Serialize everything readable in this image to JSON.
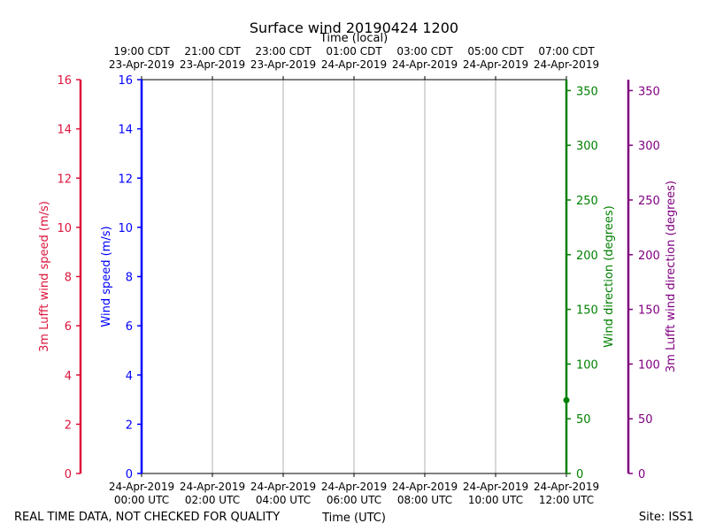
{
  "chart_data": {
    "type": "line",
    "title": "Surface wind 20190424 1200",
    "top_xlabel": "Time (local)",
    "xlabel": "Time (UTC)",
    "footer_left": "REAL TIME DATA, NOT CHECKED FOR QUALITY",
    "footer_right": "Site: ISS1",
    "x_ticks_utc": [
      [
        "24-Apr-2019",
        "00:00 UTC"
      ],
      [
        "24-Apr-2019",
        "02:00 UTC"
      ],
      [
        "24-Apr-2019",
        "04:00 UTC"
      ],
      [
        "24-Apr-2019",
        "06:00 UTC"
      ],
      [
        "24-Apr-2019",
        "08:00 UTC"
      ],
      [
        "24-Apr-2019",
        "10:00 UTC"
      ],
      [
        "24-Apr-2019",
        "12:00 UTC"
      ]
    ],
    "x_ticks_local": [
      [
        "19:00 CDT",
        "23-Apr-2019"
      ],
      [
        "21:00 CDT",
        "23-Apr-2019"
      ],
      [
        "23:00 CDT",
        "23-Apr-2019"
      ],
      [
        "01:00 CDT",
        "24-Apr-2019"
      ],
      [
        "03:00 CDT",
        "24-Apr-2019"
      ],
      [
        "05:00 CDT",
        "24-Apr-2019"
      ],
      [
        "07:00 CDT",
        "24-Apr-2019"
      ]
    ],
    "xlim_hours": [
      0,
      12
    ],
    "axes": {
      "lufft_speed": {
        "label": "3m Lufft wind speed (m/s)",
        "ylim": [
          0,
          16
        ],
        "ticks": [
          0,
          2,
          4,
          6,
          8,
          10,
          12,
          14,
          16
        ],
        "color": "#dc143c"
      },
      "speed": {
        "label": "Wind speed (m/s)",
        "ylim": [
          0,
          16
        ],
        "ticks": [
          0,
          2,
          4,
          6,
          8,
          10,
          12,
          14,
          16
        ],
        "color": "#0000ff"
      },
      "direction": {
        "label": "Wind direction (degrees)",
        "ylim": [
          0,
          360
        ],
        "ticks": [
          0,
          50,
          100,
          150,
          200,
          250,
          300,
          350
        ],
        "color": "#008000"
      },
      "lufft_direction": {
        "label": "3m Lufft wind direction (degrees)",
        "ylim": [
          0,
          360
        ],
        "ticks": [
          0,
          50,
          100,
          150,
          200,
          250,
          300,
          350
        ],
        "color": "#800080"
      }
    },
    "grid": true,
    "series": [
      {
        "axis": "direction",
        "color": "#008000",
        "points": [
          [
            12,
            67
          ]
        ]
      }
    ]
  }
}
